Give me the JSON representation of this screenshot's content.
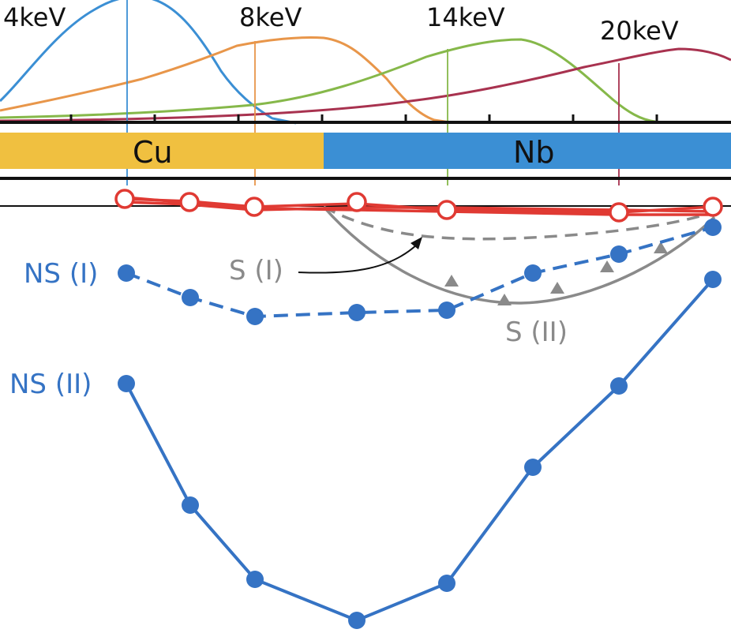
{
  "energy_labels": [
    "4keV",
    "8keV",
    "14keV",
    "20keV"
  ],
  "layers": [
    {
      "name": "Cu",
      "color": "#f0c040"
    },
    {
      "name": "Nb",
      "color": "#3b8fd4"
    }
  ],
  "series_labels": {
    "ns1": "NS (I)",
    "ns2": "NS (II)",
    "s1": "S (I)",
    "s2": "S (II)"
  },
  "colors": {
    "e4": "#3b8fd4",
    "e8": "#e8964a",
    "e14": "#86b84a",
    "e20": "#a8324f",
    "normal": "#e03a33",
    "ns": "#3573c4",
    "s": "#8a8a8a",
    "axis": "#111111"
  }
}
